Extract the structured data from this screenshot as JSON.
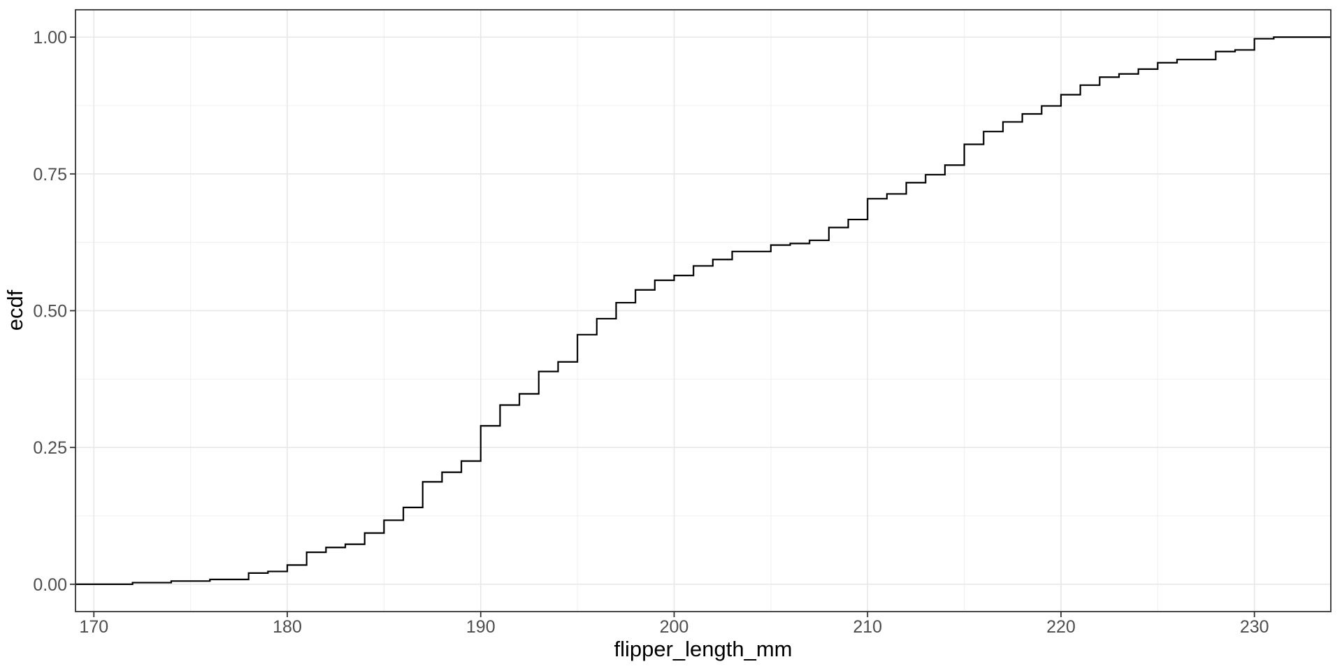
{
  "figure": {
    "background": "#FFFFFF",
    "title": ""
  },
  "chart_data": {
    "type": "line",
    "subtype": "ecdf-step",
    "title": "",
    "xlabel": "flipper_length_mm",
    "ylabel": "ecdf",
    "xlim": [
      169.05,
      233.95
    ],
    "ylim": [
      -0.05,
      1.05
    ],
    "grid": true,
    "legend": "none",
    "x_ticks": {
      "values": [
        170,
        180,
        190,
        200,
        210,
        220,
        230
      ],
      "labels": [
        "170",
        "180",
        "190",
        "200",
        "210",
        "220",
        "230"
      ]
    },
    "x_minor_gridlines": [
      175,
      185,
      195,
      205,
      215,
      225
    ],
    "y_ticks": {
      "values": [
        0,
        0.25,
        0.5,
        0.75,
        1
      ],
      "labels": [
        "0.00",
        "0.25",
        "0.50",
        "0.75",
        "1.00"
      ]
    },
    "y_minor_gridlines": [
      0.125,
      0.375,
      0.625,
      0.875
    ],
    "n_total": 342,
    "series": [
      {
        "name": "ecdf",
        "x": [
          172,
          174,
          176,
          178,
          179,
          180,
          181,
          182,
          183,
          184,
          185,
          186,
          187,
          188,
          189,
          190,
          191,
          192,
          193,
          194,
          195,
          196,
          197,
          198,
          199,
          200,
          201,
          202,
          203,
          205,
          206,
          207,
          208,
          209,
          210,
          211,
          212,
          213,
          214,
          215,
          216,
          217,
          218,
          219,
          220,
          221,
          222,
          223,
          224,
          225,
          226,
          228,
          229,
          230,
          231
        ],
        "count": [
          1,
          1,
          1,
          4,
          1,
          4,
          8,
          3,
          2,
          7,
          8,
          8,
          16,
          6,
          7,
          22,
          13,
          7,
          14,
          6,
          17,
          10,
          10,
          8,
          6,
          3,
          6,
          4,
          5,
          4,
          1,
          2,
          8,
          5,
          13,
          3,
          7,
          5,
          6,
          13,
          8,
          6,
          5,
          5,
          7,
          6,
          5,
          2,
          3,
          4,
          2,
          5,
          1,
          7,
          1
        ],
        "extend_left_to_panel_edge_at_y": 0,
        "extend_right_to_panel_edge_at_y": 1
      }
    ],
    "colors": {
      "line": "#000000",
      "grid_major": "#E7E7E7",
      "grid_minor": "#EFEFEF",
      "panel_border": "#333333",
      "tick_mark": "#333333",
      "tick_label": "#4D4D4D",
      "axis_title": "#000000",
      "panel_background": "#FFFFFF"
    }
  }
}
